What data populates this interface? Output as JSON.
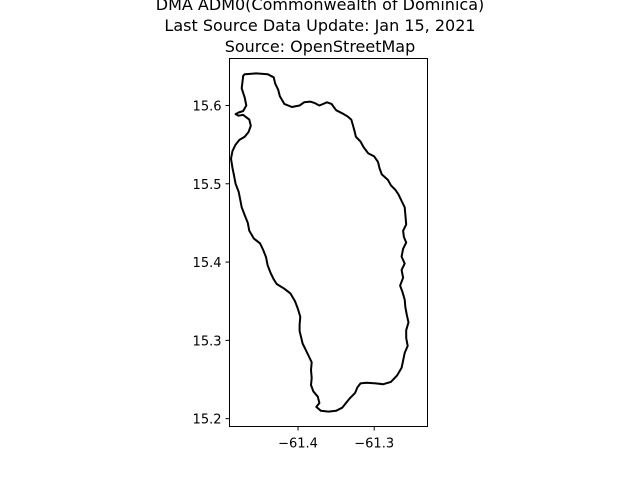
{
  "title_lines": [
    "DMA ADM0(Commonwealth of Dominica)",
    "Last Source Data Update: Jan 15, 2021",
    "Source: OpenStreetMap"
  ],
  "chart_data": {
    "type": "map",
    "country_code": "DMA",
    "admin_level": "ADM0",
    "xlim": [
      -61.49,
      -61.23
    ],
    "ylim": [
      15.19,
      15.66
    ],
    "xticks": [
      -61.4,
      -61.3
    ],
    "xtick_labels": [
      "−61.4",
      "−61.3"
    ],
    "yticks": [
      15.2,
      15.3,
      15.4,
      15.5,
      15.6
    ],
    "ytick_labels": [
      "15.2",
      "15.3",
      "15.4",
      "15.5",
      "15.6"
    ],
    "grid": false,
    "outline_color": "#000000",
    "outline": [
      [
        -61.472,
        15.638
      ],
      [
        -61.47,
        15.64
      ],
      [
        -61.455,
        15.641
      ],
      [
        -61.44,
        15.64
      ],
      [
        -61.432,
        15.636
      ],
      [
        -61.43,
        15.628
      ],
      [
        -61.426,
        15.62
      ],
      [
        -61.424,
        15.612
      ],
      [
        -61.418,
        15.602
      ],
      [
        -61.408,
        15.598
      ],
      [
        -61.398,
        15.6
      ],
      [
        -61.392,
        15.604
      ],
      [
        -61.384,
        15.605
      ],
      [
        -61.378,
        15.603
      ],
      [
        -61.372,
        15.6
      ],
      [
        -61.362,
        15.604
      ],
      [
        -61.356,
        15.602
      ],
      [
        -61.35,
        15.594
      ],
      [
        -61.342,
        15.59
      ],
      [
        -61.335,
        15.586
      ],
      [
        -61.33,
        15.582
      ],
      [
        -61.328,
        15.575
      ],
      [
        -61.326,
        15.568
      ],
      [
        -61.324,
        15.56
      ],
      [
        -61.318,
        15.554
      ],
      [
        -61.314,
        15.547
      ],
      [
        -61.308,
        15.539
      ],
      [
        -61.3,
        15.535
      ],
      [
        -61.295,
        15.528
      ],
      [
        -61.293,
        15.52
      ],
      [
        -61.29,
        15.512
      ],
      [
        -61.282,
        15.505
      ],
      [
        -61.278,
        15.498
      ],
      [
        -61.272,
        15.492
      ],
      [
        -61.268,
        15.486
      ],
      [
        -61.264,
        15.478
      ],
      [
        -61.26,
        15.47
      ],
      [
        -61.259,
        15.46
      ],
      [
        -61.258,
        15.448
      ],
      [
        -61.262,
        15.44
      ],
      [
        -61.261,
        15.432
      ],
      [
        -61.258,
        15.425
      ],
      [
        -61.262,
        15.417
      ],
      [
        -61.264,
        15.407
      ],
      [
        -61.26,
        15.398
      ],
      [
        -61.264,
        15.39
      ],
      [
        -61.262,
        15.38
      ],
      [
        -61.266,
        15.37
      ],
      [
        -61.263,
        15.362
      ],
      [
        -61.26,
        15.352
      ],
      [
        -61.259,
        15.342
      ],
      [
        -61.257,
        15.332
      ],
      [
        -61.255,
        15.323
      ],
      [
        -61.258,
        15.313
      ],
      [
        -61.258,
        15.303
      ],
      [
        -61.256,
        15.293
      ],
      [
        -61.26,
        15.284
      ],
      [
        -61.262,
        15.274
      ],
      [
        -61.264,
        15.265
      ],
      [
        -61.27,
        15.255
      ],
      [
        -61.278,
        15.247
      ],
      [
        -61.288,
        15.244
      ],
      [
        -61.298,
        15.245
      ],
      [
        -61.31,
        15.246
      ],
      [
        -61.318,
        15.245
      ],
      [
        -61.322,
        15.24
      ],
      [
        -61.325,
        15.233
      ],
      [
        -61.332,
        15.226
      ],
      [
        -61.337,
        15.22
      ],
      [
        -61.342,
        15.214
      ],
      [
        -61.35,
        15.21
      ],
      [
        -61.36,
        15.209
      ],
      [
        -61.37,
        15.21
      ],
      [
        -61.376,
        15.215
      ],
      [
        -61.372,
        15.22
      ],
      [
        -61.374,
        15.228
      ],
      [
        -61.38,
        15.235
      ],
      [
        -61.383,
        15.243
      ],
      [
        -61.382,
        15.252
      ],
      [
        -61.383,
        15.262
      ],
      [
        -61.382,
        15.272
      ],
      [
        -61.386,
        15.28
      ],
      [
        -61.39,
        15.288
      ],
      [
        -61.394,
        15.296
      ],
      [
        -61.396,
        15.304
      ],
      [
        -61.398,
        15.312
      ],
      [
        -61.398,
        15.32
      ],
      [
        -61.397,
        15.33
      ],
      [
        -61.4,
        15.34
      ],
      [
        -61.404,
        15.35
      ],
      [
        -61.41,
        15.36
      ],
      [
        -61.418,
        15.366
      ],
      [
        -61.428,
        15.372
      ],
      [
        -61.432,
        15.378
      ],
      [
        -61.436,
        15.386
      ],
      [
        -61.44,
        15.396
      ],
      [
        -61.442,
        15.406
      ],
      [
        -61.446,
        15.416
      ],
      [
        -61.45,
        15.424
      ],
      [
        -61.458,
        15.43
      ],
      [
        -61.464,
        15.44
      ],
      [
        -61.466,
        15.45
      ],
      [
        -61.47,
        15.46
      ],
      [
        -61.474,
        15.47
      ],
      [
        -61.476,
        15.48
      ],
      [
        -61.478,
        15.49
      ],
      [
        -61.482,
        15.5
      ],
      [
        -61.484,
        15.51
      ],
      [
        -61.486,
        15.52
      ],
      [
        -61.488,
        15.532
      ],
      [
        -61.486,
        15.542
      ],
      [
        -61.482,
        15.55
      ],
      [
        -61.477,
        15.556
      ],
      [
        -61.47,
        15.56
      ],
      [
        -61.465,
        15.566
      ],
      [
        -61.462,
        15.574
      ],
      [
        -61.464,
        15.582
      ],
      [
        -61.472,
        15.588
      ],
      [
        -61.478,
        15.587
      ],
      [
        -61.482,
        15.589
      ],
      [
        -61.478,
        15.591
      ],
      [
        -61.472,
        15.593
      ],
      [
        -61.468,
        15.6
      ],
      [
        -61.47,
        15.61
      ],
      [
        -61.474,
        15.622
      ],
      [
        -61.472,
        15.638
      ]
    ]
  }
}
